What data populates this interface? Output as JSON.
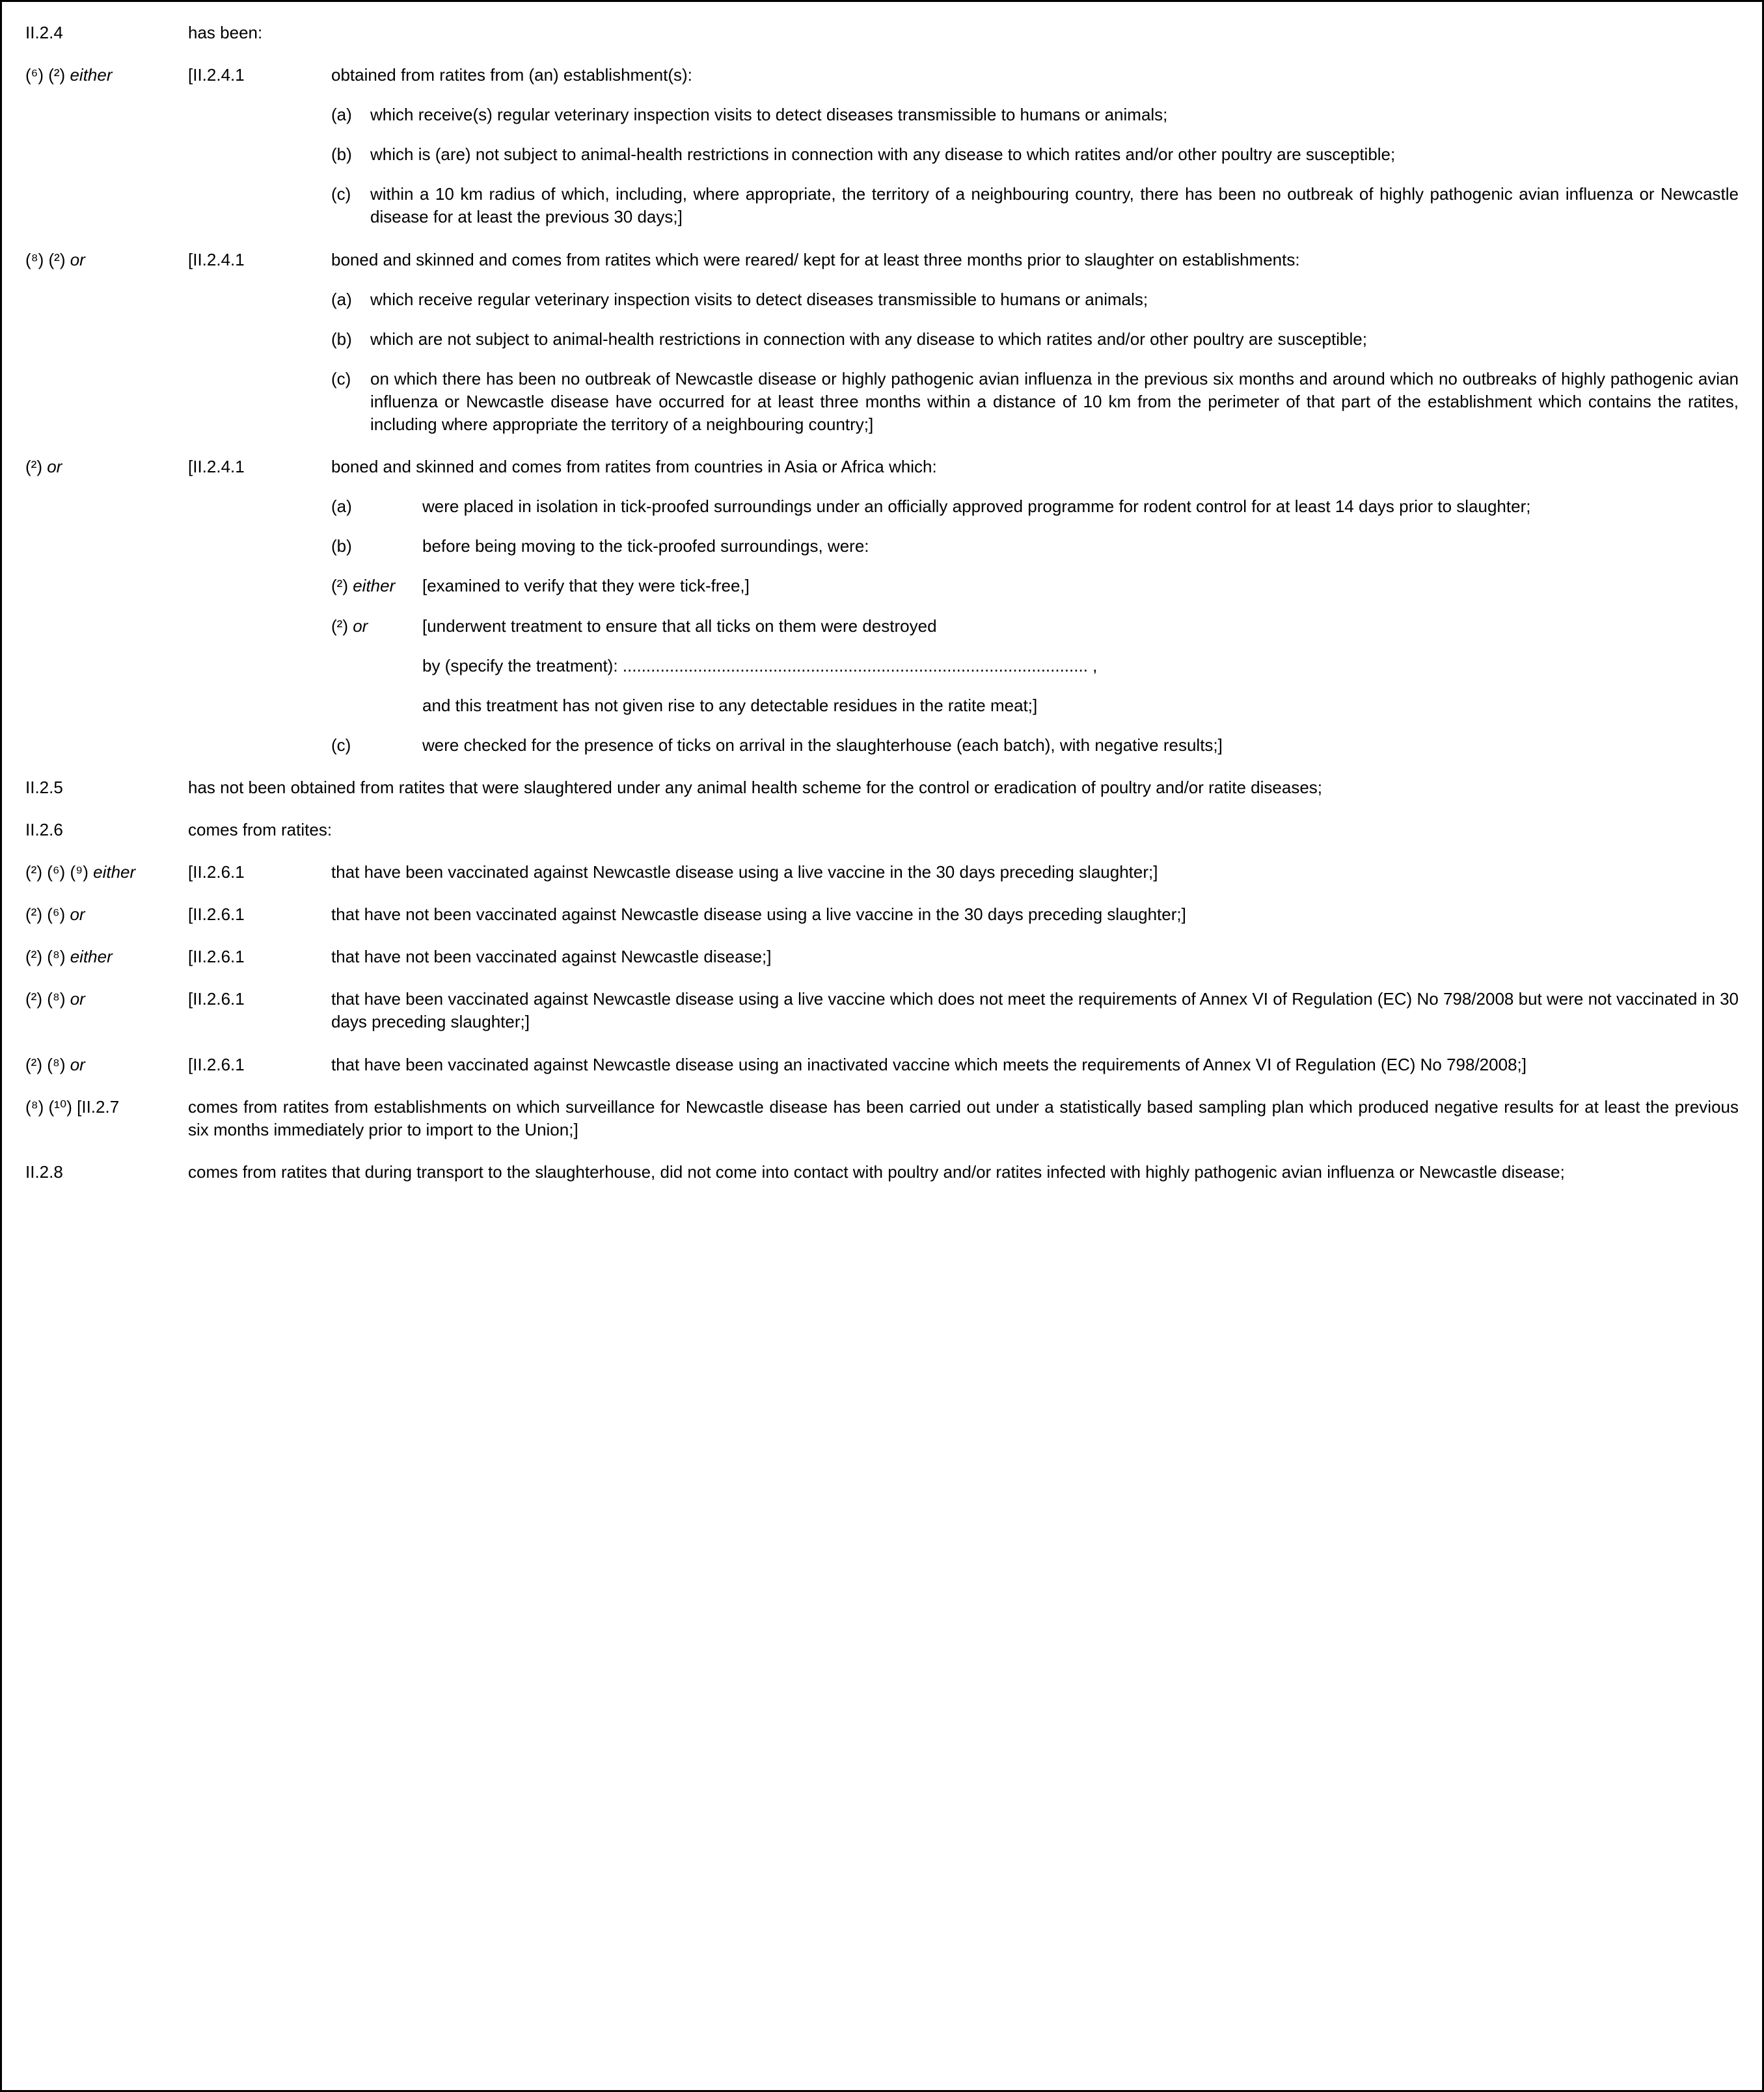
{
  "s24": {
    "ref": "II.2.4",
    "intro": "has been:",
    "opt1": {
      "fn": "(⁶) (²) ",
      "kw": "either",
      "ref": "[II.2.4.1",
      "lead": "obtained from ratites from (an) establishment(s):",
      "a": "which receive(s) regular veterinary inspection visits to detect diseases transmissible to humans or animals;",
      "b": "which is (are) not subject to animal-health restrictions in connection with any disease to which ratites and/or other poultry are susceptible;",
      "c": "within a 10 km radius of which, including, where appropriate, the territory of a neighbouring country, there has been no outbreak of highly pathogenic avian influenza or Newcastle disease for at least the previous 30 days;]"
    },
    "opt2": {
      "fn": "(⁸) (²) ",
      "kw": "or",
      "ref": "[II.2.4.1",
      "lead": "boned and skinned and comes from ratites which were reared/ kept for at least three months prior to slaughter on establishments:",
      "a": "which receive regular veterinary inspection visits to detect diseases transmissible to humans or animals;",
      "b": "which are not subject to animal-health restrictions in connection with any disease to which ratites and/or other poultry are susceptible;",
      "c": "on which there has been no outbreak of Newcastle disease or highly pathogenic avian influenza in the previous six months and around which no outbreaks of highly pathogenic avian influenza or Newcastle disease have occurred for at least three months within a distance of 10 km from the perimeter of that part of the establishment which contains the ratites, including where appropriate the territory of a neighbouring country;]"
    },
    "opt3": {
      "fn": "(²) ",
      "kw": "or",
      "ref": "[II.2.4.1",
      "lead": "boned and skinned and comes from ratites from countries in Asia or Africa which:",
      "a": "were placed in isolation in tick-proofed surroundings under an officially approved programme for rodent control for at least 14 days prior to slaughter;",
      "b": "before being moving to the tick-proofed surroundings, were:",
      "b_either_fn": "(²) ",
      "b_either_kw": "either",
      "b_either_txt": "[examined to verify that they were tick-free,]",
      "b_or_fn": "(²) ",
      "b_or_kw": "or",
      "b_or_txt": "[underwent treatment to ensure that all ticks on them were destroyed",
      "b_or_line2": "by (specify the treatment): ................................................................................................... ,",
      "b_or_line3": "and this treatment has not given rise to any detectable residues in the ratite meat;]",
      "c": "were checked for the presence of ticks on arrival in the slaughterhouse (each batch), with negative results;]"
    }
  },
  "s25": {
    "ref": "II.2.5",
    "txt": "has not been obtained from ratites that were slaughtered under any animal health scheme for the control or eradication of poultry and/or ratite diseases;"
  },
  "s26": {
    "ref": "II.2.6",
    "intro": "comes from ratites:",
    "o1": {
      "fn": "(²) (⁶) (⁹) ",
      "kw": "either",
      "ref": "[II.2.6.1",
      "txt": "that have been vaccinated against Newcastle disease using a live vaccine in the 30 days preceding slaughter;]"
    },
    "o2": {
      "fn": "(²) (⁶) ",
      "kw": "or",
      "ref": "[II.2.6.1",
      "txt": "that have not been vaccinated against Newcastle disease using a live vaccine in the 30 days preceding slaughter;]"
    },
    "o3": {
      "fn": "(²) (⁸) ",
      "kw": "either",
      "ref": "[II.2.6.1",
      "txt": "that have not been vaccinated against Newcastle disease;]"
    },
    "o4": {
      "fn": "(²) (⁸) ",
      "kw": "or",
      "ref": "[II.2.6.1",
      "txt": "that have been vaccinated against Newcastle disease using a live vaccine which does not meet the requirements of Annex VI of Regulation (EC) No 798/2008 but were not vaccinated in 30 days preceding slaughter;]"
    },
    "o5": {
      "fn": "(²) (⁸) ",
      "kw": "or",
      "ref": "[II.2.6.1",
      "txt": "that have been vaccinated against Newcastle disease using an inactivated vaccine which meets the requirements of Annex VI of Regulation (EC) No 798/2008;]"
    }
  },
  "s27": {
    "fn": "(⁸) (¹⁰) ",
    "ref": "[II.2.7",
    "txt": "comes from ratites from establishments on which surveillance for Newcastle disease has been carried out under a statistically based sampling plan which produced negative results for at least the previous six months immediately prior to import to the Union;]"
  },
  "s28": {
    "ref": "II.2.8",
    "txt": "comes from ratites that during transport to the slaughterhouse, did not come into contact with poultry and/or ratites infected with highly pathogenic avian influenza or Newcastle disease;"
  }
}
